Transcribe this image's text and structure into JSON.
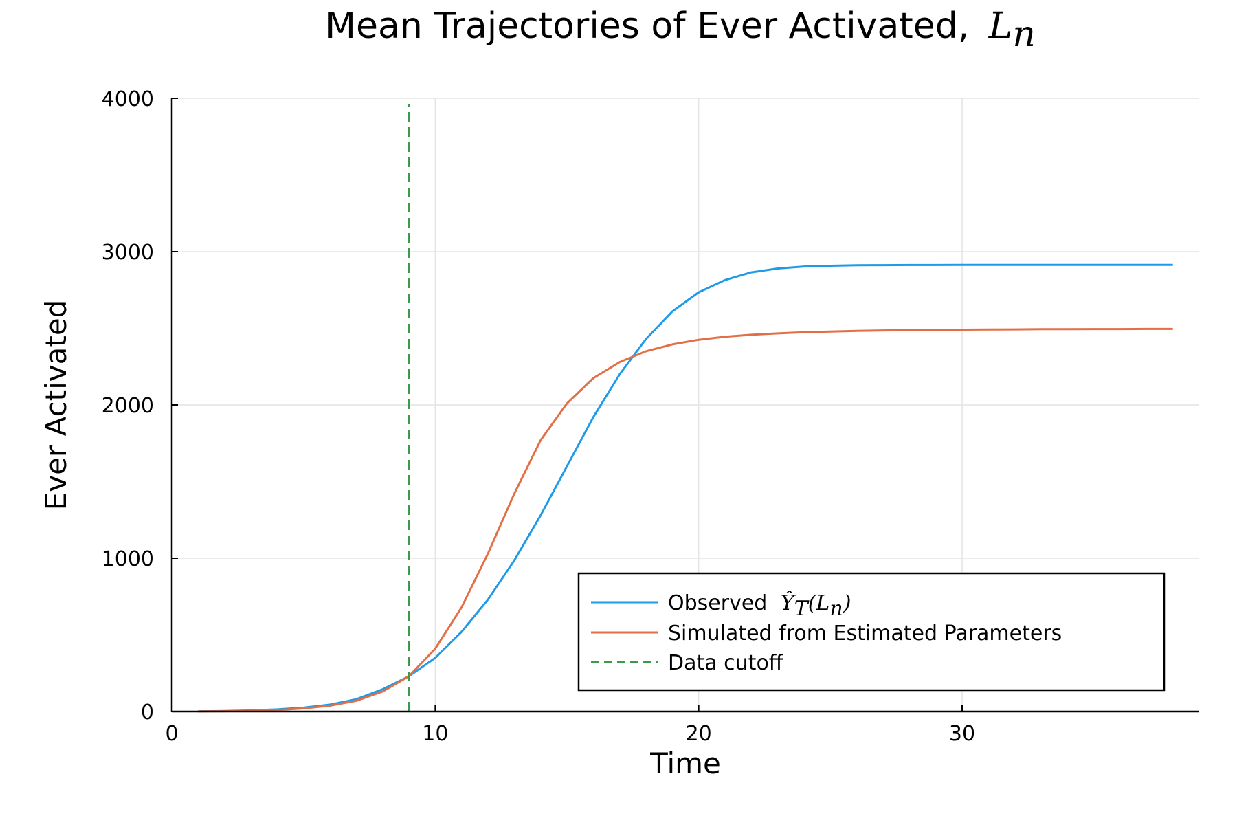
{
  "chart_data": {
    "type": "line",
    "title": "Mean Trajectories of Ever Activated,",
    "title_math": "L",
    "title_math_sub": "n",
    "xlabel": "Time",
    "ylabel": "Ever Activated",
    "xlim": [
      0,
      39
    ],
    "ylim": [
      0,
      4000
    ],
    "xticks": [
      0,
      10,
      20,
      30
    ],
    "yticks": [
      0,
      1000,
      2000,
      3000,
      4000
    ],
    "grid": true,
    "legend_position": "bottom-right",
    "series": [
      {
        "name": "Observed",
        "name_math": "Ŷ",
        "name_math_sub": "T",
        "name_math_arg": "(L",
        "name_math_arg_sub": "n",
        "name_math_close": ")",
        "color": "#1f9ae8",
        "style": "solid",
        "x": [
          1,
          2,
          3,
          4,
          5,
          6,
          7,
          8,
          9,
          10,
          11,
          12,
          13,
          14,
          15,
          16,
          17,
          18,
          19,
          20,
          21,
          22,
          23,
          24,
          25,
          26,
          27,
          28,
          29,
          30,
          31,
          32,
          33,
          34,
          35,
          36,
          37,
          38
        ],
        "y": [
          1,
          3,
          7,
          14,
          25,
          45,
          80,
          145,
          230,
          350,
          520,
          730,
          985,
          1280,
          1600,
          1920,
          2200,
          2430,
          2610,
          2735,
          2815,
          2865,
          2890,
          2903,
          2908,
          2911,
          2912,
          2913,
          2913,
          2914,
          2914,
          2914,
          2914,
          2914,
          2914,
          2914,
          2914,
          2914
        ]
      },
      {
        "name": "Simulated from Estimated Parameters",
        "color": "#e26f46",
        "style": "solid",
        "x": [
          1,
          2,
          3,
          4,
          5,
          6,
          7,
          8,
          9,
          10,
          11,
          12,
          13,
          14,
          15,
          16,
          17,
          18,
          19,
          20,
          21,
          22,
          23,
          24,
          25,
          26,
          27,
          28,
          29,
          30,
          31,
          32,
          33,
          34,
          35,
          36,
          37,
          38
        ],
        "y": [
          1,
          2,
          5,
          10,
          20,
          38,
          70,
          130,
          230,
          410,
          680,
          1030,
          1420,
          1770,
          2010,
          2175,
          2280,
          2350,
          2395,
          2425,
          2445,
          2458,
          2467,
          2474,
          2479,
          2483,
          2486,
          2488,
          2490,
          2491,
          2492,
          2493,
          2494,
          2494,
          2495,
          2495,
          2496,
          2496
        ]
      },
      {
        "name": "Data cutoff",
        "color": "#3a9b4a",
        "style": "dashed",
        "x": [
          9,
          9
        ],
        "y": [
          0,
          3960
        ]
      }
    ]
  }
}
